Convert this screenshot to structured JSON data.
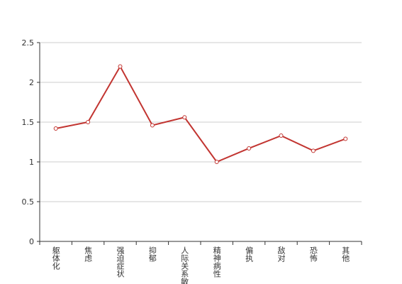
{
  "chart_data": {
    "type": "line",
    "categories": [
      "躯体化",
      "焦虑",
      "强迫症状",
      "抑郁",
      "人际关系敏感",
      "精神病性",
      "偏执",
      "敌对",
      "恐怖",
      "其他"
    ],
    "values": [
      1.42,
      1.5,
      2.2,
      1.46,
      1.56,
      1.0,
      1.17,
      1.33,
      1.14,
      1.29
    ],
    "color": "#c23531",
    "ylim": [
      0,
      2.5
    ],
    "yticks": [
      0,
      0.5,
      1,
      1.5,
      2,
      2.5
    ],
    "grid": true
  }
}
